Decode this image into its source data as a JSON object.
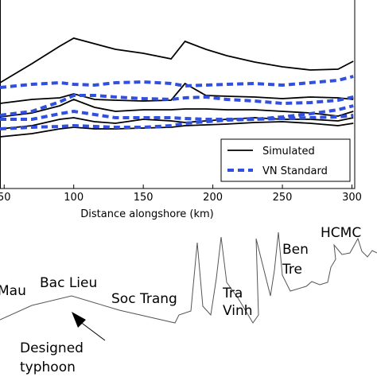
{
  "chart_data": {
    "type": "line",
    "x_label": "Distance alongshore (km)",
    "x": [
      47,
      70,
      90,
      100,
      115,
      130,
      150,
      170,
      180,
      195,
      210,
      230,
      250,
      270,
      290,
      301
    ],
    "xlim": [
      47,
      302
    ],
    "xticks": [
      50,
      100,
      150,
      200,
      250,
      300
    ],
    "ylim": [
      0,
      237
    ],
    "legend": "lower right",
    "series": [
      {
        "name": "Simulated",
        "color": "#000000",
        "dashed": false,
        "lines": [
          [
            133,
            157,
            179,
            189,
            182,
            175,
            170,
            163,
            185,
            175,
            167,
            159,
            153,
            149,
            150,
            160
          ],
          [
            107,
            112,
            114,
            119,
            112,
            111,
            110,
            111,
            132,
            117,
            116,
            115,
            113,
            115,
            114,
            112
          ],
          [
            90,
            95,
            104,
            112,
            102,
            97,
            99,
            99,
            100,
            100,
            99,
            99,
            97,
            95,
            91,
            97
          ],
          [
            75,
            79,
            87,
            89,
            84,
            82,
            87,
            85,
            83,
            85,
            87,
            89,
            87,
            87,
            85,
            89
          ],
          [
            65,
            69,
            75,
            77,
            75,
            75,
            76,
            77,
            79,
            80,
            81,
            83,
            84,
            82,
            79,
            82
          ]
        ]
      },
      {
        "name": "VN Standard",
        "color": "#3050dd",
        "dashed": true,
        "lines": [
          [
            127,
            131,
            133,
            131,
            130,
            133,
            134,
            132,
            129,
            130,
            131,
            132,
            130,
            133,
            136,
            141
          ],
          [
            92,
            97,
            109,
            117,
            117,
            115,
            113,
            112,
            114,
            115,
            112,
            110,
            107,
            108,
            111,
            115
          ],
          [
            87,
            87,
            94,
            97,
            93,
            89,
            89,
            89,
            88,
            87,
            87,
            87,
            90,
            94,
            99,
            104
          ],
          [
            75,
            77,
            78,
            79,
            78,
            77,
            77,
            79,
            82,
            84,
            86,
            87,
            88,
            89,
            90,
            92
          ]
        ]
      }
    ]
  },
  "map": {
    "labels": [
      "Mau",
      "Bac Lieu",
      "Soc Trang",
      "Tra",
      "Vinh",
      "Ben",
      "Tre",
      "HCMC",
      "Designed",
      "typhoon"
    ]
  }
}
